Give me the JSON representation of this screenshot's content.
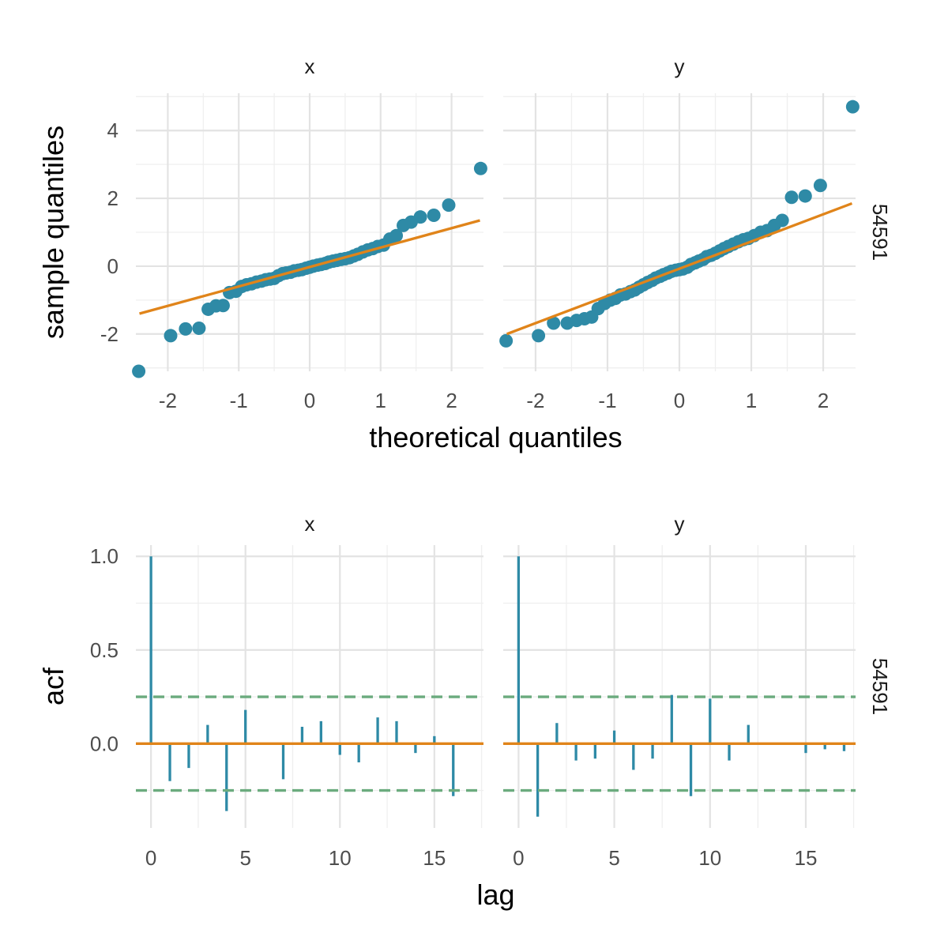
{
  "colors": {
    "points": "#2e8aa6",
    "fit_line": "#e0841a",
    "bars": "#2e8aa6",
    "zero_line": "#e0841a",
    "confidence_band": "#6bab7e"
  },
  "chart_data": [
    {
      "type": "scatter",
      "subtype": "qq-plot",
      "xlabel": "theoretical quantiles",
      "ylabel": "sample quantiles",
      "facet_rows": [
        "54591"
      ],
      "facet_cols": [
        "x",
        "y"
      ],
      "xlim": [
        -2.45,
        2.45
      ],
      "ylim": [
        -3.1,
        5.1
      ],
      "x_ticks": [
        -2,
        -1,
        0,
        1,
        2
      ],
      "y_ticks": [
        -2,
        0,
        2,
        4
      ],
      "x_tick_labels": [
        "-2",
        "-1",
        "0",
        "1",
        "2"
      ],
      "y_tick_labels": [
        "-2",
        "0",
        "2",
        "4"
      ],
      "grid": true,
      "series": [
        {
          "panel": "x",
          "reference_line": [
            [
              -2.4,
              -1.4
            ],
            [
              2.4,
              1.35
            ]
          ],
          "x": [
            -2.41,
            -1.96,
            -1.75,
            -1.56,
            -1.43,
            -1.32,
            -1.22,
            -1.13,
            -1.04,
            -0.96,
            -0.89,
            -0.82,
            -0.75,
            -0.68,
            -0.62,
            -0.56,
            -0.5,
            -0.44,
            -0.38,
            -0.33,
            -0.27,
            -0.22,
            -0.16,
            -0.11,
            -0.05,
            0.0,
            0.05,
            0.11,
            0.16,
            0.22,
            0.27,
            0.33,
            0.38,
            0.44,
            0.5,
            0.56,
            0.62,
            0.68,
            0.75,
            0.82,
            0.89,
            0.96,
            1.04,
            1.13,
            1.22,
            1.32,
            1.43,
            1.56,
            1.75,
            1.96,
            2.41
          ],
          "y": [
            -3.1,
            -2.05,
            -1.85,
            -1.83,
            -1.27,
            -1.17,
            -1.16,
            -0.78,
            -0.74,
            -0.6,
            -0.55,
            -0.52,
            -0.47,
            -0.44,
            -0.4,
            -0.38,
            -0.36,
            -0.28,
            -0.22,
            -0.2,
            -0.18,
            -0.14,
            -0.12,
            -0.1,
            -0.06,
            -0.03,
            0.0,
            0.03,
            0.05,
            0.08,
            0.12,
            0.15,
            0.17,
            0.2,
            0.22,
            0.25,
            0.3,
            0.35,
            0.42,
            0.48,
            0.52,
            0.58,
            0.62,
            0.8,
            0.9,
            1.2,
            1.3,
            1.45,
            1.5,
            1.8,
            2.88
          ]
        },
        {
          "panel": "y",
          "reference_line": [
            [
              -2.4,
              -2.0
            ],
            [
              2.4,
              1.85
            ]
          ],
          "x": [
            -2.41,
            -1.96,
            -1.75,
            -1.56,
            -1.43,
            -1.32,
            -1.22,
            -1.13,
            -1.04,
            -0.96,
            -0.89,
            -0.82,
            -0.75,
            -0.68,
            -0.62,
            -0.56,
            -0.5,
            -0.44,
            -0.38,
            -0.33,
            -0.27,
            -0.22,
            -0.16,
            -0.11,
            -0.05,
            0.0,
            0.05,
            0.11,
            0.16,
            0.22,
            0.27,
            0.33,
            0.38,
            0.44,
            0.5,
            0.56,
            0.62,
            0.68,
            0.75,
            0.82,
            0.89,
            0.96,
            1.04,
            1.13,
            1.22,
            1.32,
            1.43,
            1.56,
            1.75,
            1.96,
            2.41
          ],
          "y": [
            -2.2,
            -2.05,
            -1.68,
            -1.68,
            -1.6,
            -1.55,
            -1.5,
            -1.25,
            -1.1,
            -1.0,
            -0.95,
            -0.85,
            -0.82,
            -0.75,
            -0.7,
            -0.62,
            -0.55,
            -0.48,
            -0.42,
            -0.35,
            -0.3,
            -0.25,
            -0.2,
            -0.15,
            -0.12,
            -0.1,
            -0.08,
            -0.03,
            0.05,
            0.1,
            0.15,
            0.2,
            0.28,
            0.32,
            0.38,
            0.45,
            0.52,
            0.58,
            0.65,
            0.72,
            0.78,
            0.82,
            0.9,
            1.0,
            1.05,
            1.2,
            1.35,
            2.03,
            2.07,
            2.38,
            4.7
          ]
        }
      ]
    },
    {
      "type": "bar",
      "subtype": "acf",
      "xlabel": "lag",
      "ylabel": "acf",
      "facet_rows": [
        "54591"
      ],
      "facet_cols": [
        "x",
        "y"
      ],
      "xlim": [
        -0.8,
        17.6
      ],
      "ylim": [
        -0.45,
        1.06
      ],
      "x_ticks": [
        0,
        5,
        10,
        15
      ],
      "y_ticks": [
        0.0,
        0.5,
        1.0
      ],
      "x_tick_labels": [
        "0",
        "5",
        "10",
        "15"
      ],
      "y_tick_labels": [
        "0.0",
        "0.5",
        "1.0"
      ],
      "confidence_bounds": [
        0.25,
        -0.25
      ],
      "grid": true,
      "series": [
        {
          "panel": "x",
          "lags": [
            0,
            1,
            2,
            3,
            4,
            5,
            6,
            7,
            8,
            9,
            10,
            11,
            12,
            13,
            14,
            15,
            16,
            17
          ],
          "values": [
            1.0,
            -0.2,
            -0.13,
            0.1,
            -0.36,
            0.18,
            0.0,
            -0.19,
            0.09,
            0.12,
            -0.06,
            -0.1,
            0.14,
            0.12,
            -0.05,
            0.04,
            -0.28,
            0.0
          ]
        },
        {
          "panel": "y",
          "lags": [
            0,
            1,
            2,
            3,
            4,
            5,
            6,
            7,
            8,
            9,
            10,
            11,
            12,
            13,
            14,
            15,
            16,
            17
          ],
          "values": [
            1.0,
            -0.39,
            0.11,
            -0.09,
            -0.08,
            0.07,
            -0.14,
            -0.08,
            0.26,
            -0.28,
            0.24,
            -0.09,
            0.1,
            0.0,
            0.0,
            -0.05,
            -0.03,
            -0.04
          ]
        }
      ]
    }
  ]
}
